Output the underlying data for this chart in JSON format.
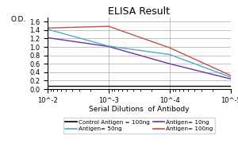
{
  "title": "ELISA Result",
  "ylabel": "O.D.",
  "xlabel": "Serial Dilutions  of Antibody",
  "x_values": [
    0.01,
    0.001,
    0.0001,
    1e-05
  ],
  "lines": [
    {
      "label": "Control Antigen = 100ng",
      "color": "#000000",
      "y": [
        0.08,
        0.08,
        0.08,
        0.08
      ]
    },
    {
      "label": "Antigen= 10ng",
      "color": "#7030a0",
      "y": [
        1.22,
        1.01,
        0.6,
        0.24
      ]
    },
    {
      "label": "Antigen= 50ng",
      "color": "#4bacc6",
      "y": [
        1.42,
        1.02,
        0.82,
        0.28
      ]
    },
    {
      "label": "Antigen= 100ng",
      "color": "#c0504d",
      "y": [
        1.45,
        1.49,
        0.98,
        0.32
      ]
    }
  ],
  "ylim": [
    0,
    1.7
  ],
  "yticks": [
    0,
    0.2,
    0.4,
    0.6,
    0.8,
    1.0,
    1.2,
    1.4,
    1.6
  ],
  "xtick_labels": [
    "10^-2",
    "10^-3",
    "10^-4",
    "10^-5"
  ],
  "title_fontsize": 9,
  "axis_label_fontsize": 6.5,
  "tick_fontsize": 6,
  "legend_fontsize": 5.2,
  "background_color": "#ffffff",
  "grid_color": "#aaaaaa"
}
